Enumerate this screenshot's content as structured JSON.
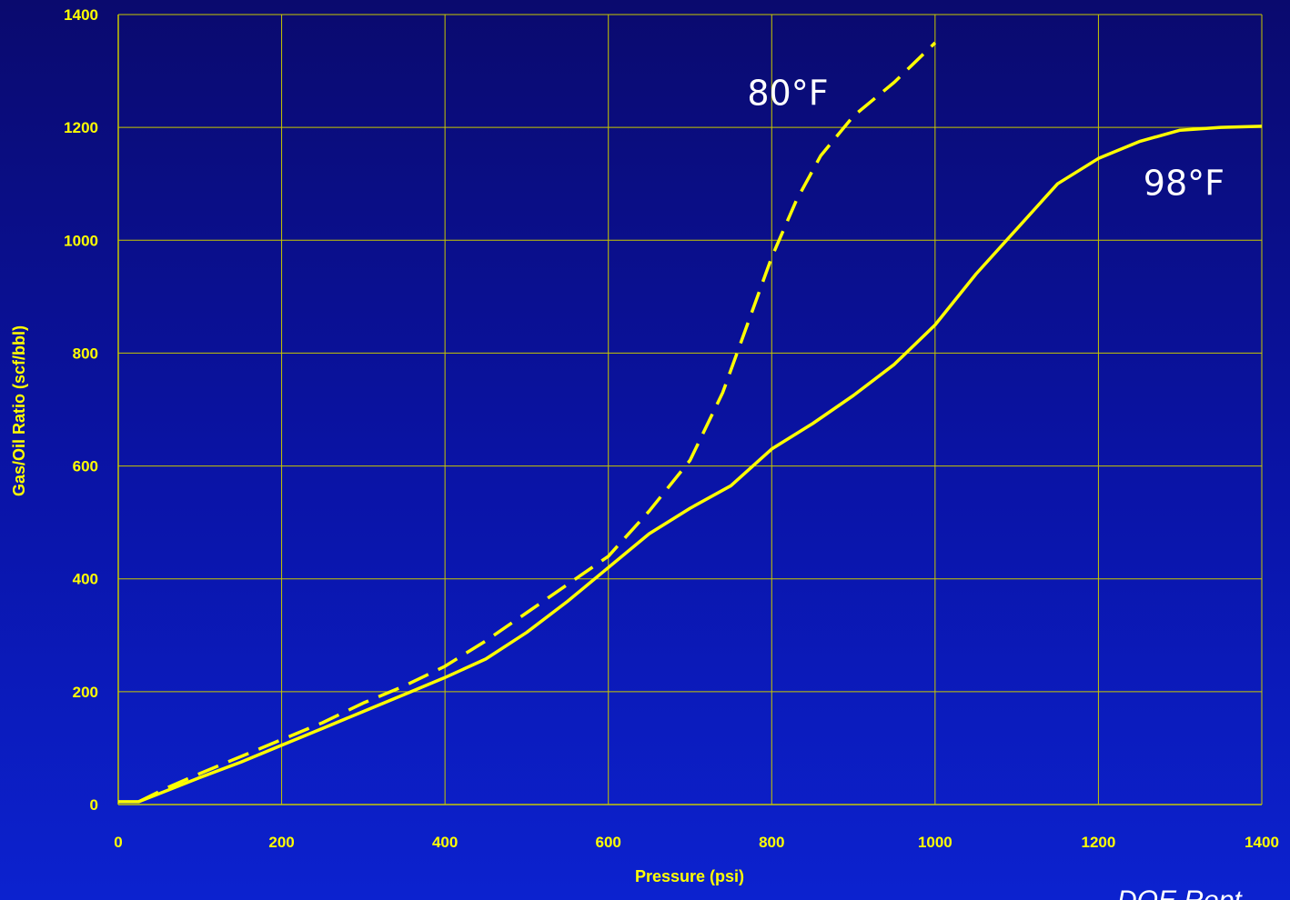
{
  "colors": {
    "background": "#0a14a8",
    "grid": "#c8c800",
    "curve": "#ffff00",
    "tick_text": "#ffff00",
    "annotation": "#ffffff"
  },
  "chart_data": {
    "type": "line",
    "title": "",
    "xlabel": "Pressure (psi)",
    "ylabel": "Gas/Oil Ratio (scf/bbl)",
    "xlim": [
      0,
      1400
    ],
    "ylim": [
      0,
      1400
    ],
    "x_ticks": [
      0,
      200,
      400,
      600,
      800,
      1000,
      1200,
      1400
    ],
    "y_ticks": [
      0,
      200,
      400,
      600,
      800,
      1000,
      1200,
      1400
    ],
    "grid": true,
    "series": [
      {
        "label": "80°F",
        "style": "dashed",
        "points": [
          [
            25,
            5
          ],
          [
            60,
            30
          ],
          [
            100,
            55
          ],
          [
            150,
            85
          ],
          [
            200,
            115
          ],
          [
            250,
            145
          ],
          [
            300,
            180
          ],
          [
            350,
            210
          ],
          [
            400,
            245
          ],
          [
            450,
            290
          ],
          [
            500,
            340
          ],
          [
            550,
            390
          ],
          [
            600,
            440
          ],
          [
            650,
            520
          ],
          [
            700,
            610
          ],
          [
            740,
            730
          ],
          [
            770,
            850
          ],
          [
            800,
            970
          ],
          [
            830,
            1070
          ],
          [
            860,
            1150
          ],
          [
            900,
            1220
          ],
          [
            950,
            1280
          ],
          [
            1000,
            1350
          ]
        ]
      },
      {
        "label": "98°F",
        "style": "solid",
        "points": [
          [
            0,
            5
          ],
          [
            25,
            5
          ],
          [
            60,
            25
          ],
          [
            100,
            48
          ],
          [
            150,
            75
          ],
          [
            200,
            105
          ],
          [
            250,
            135
          ],
          [
            300,
            165
          ],
          [
            350,
            195
          ],
          [
            400,
            225
          ],
          [
            450,
            258
          ],
          [
            500,
            305
          ],
          [
            550,
            360
          ],
          [
            600,
            420
          ],
          [
            650,
            480
          ],
          [
            700,
            525
          ],
          [
            750,
            565
          ],
          [
            800,
            630
          ],
          [
            850,
            675
          ],
          [
            900,
            725
          ],
          [
            950,
            780
          ],
          [
            1000,
            850
          ],
          [
            1050,
            940
          ],
          [
            1100,
            1020
          ],
          [
            1150,
            1100
          ],
          [
            1200,
            1145
          ],
          [
            1250,
            1175
          ],
          [
            1300,
            1195
          ],
          [
            1350,
            1200
          ],
          [
            1400,
            1202
          ]
        ]
      }
    ],
    "annotations": [
      {
        "text": "80°F",
        "x": 770,
        "y": 1240
      },
      {
        "text": "98°F",
        "x": 1255,
        "y": 1080
      }
    ],
    "source_text": "DOE Rept"
  }
}
